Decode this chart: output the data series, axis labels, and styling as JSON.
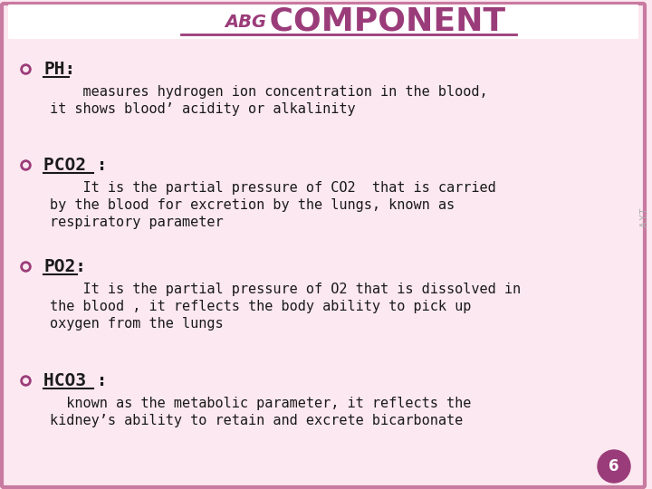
{
  "title_abg": "ABG",
  "title_component": " COMPONENT",
  "bg_color": "#fce8f0",
  "border_color": "#c87aa0",
  "title_color": "#9b3c7a",
  "bullet_color": "#9b3c7a",
  "text_color": "#1a1a1a",
  "heading_color": "#1a1a1a",
  "side_text": "A.Y.T",
  "page_num": "6",
  "page_circle_color": "#9b3c7a",
  "page_text_color": "#ffffff",
  "bullets": [
    {
      "heading": "PH:",
      "body": "    measures hydrogen ion concentration in the blood,\nit shows blood’ acidity or alkalinity"
    },
    {
      "heading": "PCO2 :",
      "body": "    It is the partial pressure of CO2  that is carried\nby the blood for excretion by the lungs, known as\nrespiratory parameter"
    },
    {
      "heading": "PO2:",
      "body": "    It is the partial pressure of O2 that is dissolved in\nthe blood , it reflects the body ability to pick up\noxygen from the lungs"
    },
    {
      "heading": "HCO3 :",
      "body": "  known as the metabolic parameter, it reflects the\nkidney’s ability to retain and excrete bicarbonate"
    }
  ]
}
